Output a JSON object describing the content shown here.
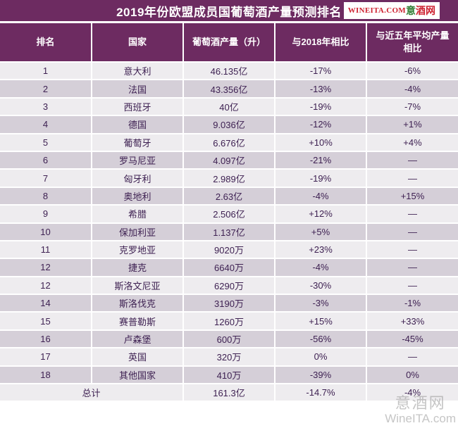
{
  "header": {
    "title": "2019年份欧盟成员国葡萄酒产量预测排名",
    "logo": {
      "latin": "WINEITA.COM",
      "cn_first": "意",
      "cn_rest": "酒网"
    }
  },
  "chart_data": {
    "type": "table",
    "title": "2019年份欧盟成员国葡萄酒产量预测排名",
    "columns": [
      "排名",
      "国家",
      "葡萄酒产量（升）",
      "与2018年相比",
      "与近五年平均产量相比"
    ],
    "rows": [
      [
        "1",
        "意大利",
        "46.135亿",
        "-17%",
        "-6%"
      ],
      [
        "2",
        "法国",
        "43.356亿",
        "-13%",
        "-4%"
      ],
      [
        "3",
        "西班牙",
        "40亿",
        "-19%",
        "-7%"
      ],
      [
        "4",
        "德国",
        "9.036亿",
        "-12%",
        "+1%"
      ],
      [
        "5",
        "葡萄牙",
        "6.676亿",
        "+10%",
        "+4%"
      ],
      [
        "6",
        "罗马尼亚",
        "4.097亿",
        "-21%",
        "—"
      ],
      [
        "7",
        "匈牙利",
        "2.989亿",
        "-19%",
        "—"
      ],
      [
        "8",
        "奥地利",
        "2.63亿",
        "-4%",
        "+15%"
      ],
      [
        "9",
        "希腊",
        "2.506亿",
        "+12%",
        "—"
      ],
      [
        "10",
        "保加利亚",
        "1.137亿",
        "+5%",
        "—"
      ],
      [
        "11",
        "克罗地亚",
        "9020万",
        "+23%",
        "—"
      ],
      [
        "12",
        "捷克",
        "6640万",
        "-4%",
        "—"
      ],
      [
        "12",
        "斯洛文尼亚",
        "6290万",
        "-30%",
        "—"
      ],
      [
        "14",
        "斯洛伐克",
        "3190万",
        "-3%",
        "-1%"
      ],
      [
        "15",
        "赛普勒斯",
        "1260万",
        "+15%",
        "+33%"
      ],
      [
        "16",
        "卢森堡",
        "600万",
        "-56%",
        "-45%"
      ],
      [
        "17",
        "英国",
        "320万",
        "0%",
        "—"
      ],
      [
        "18",
        "其他国家",
        "410万",
        "-39%",
        "0%"
      ]
    ],
    "total_row": {
      "label": "总计",
      "production": "161.3亿",
      "vs_2018": "-14.7%",
      "vs_avg": "-4%"
    }
  },
  "watermark": {
    "line1": "意酒网",
    "line2": "WineITA.com"
  },
  "colors": {
    "purple": "#6d2b61",
    "row_light": "#eeecef",
    "row_dark": "#d5cfd8",
    "text_purple": "#3e2152",
    "logo_red": "#cd2130",
    "logo_green": "#2f7d33",
    "watermark_gray": "#979797"
  }
}
